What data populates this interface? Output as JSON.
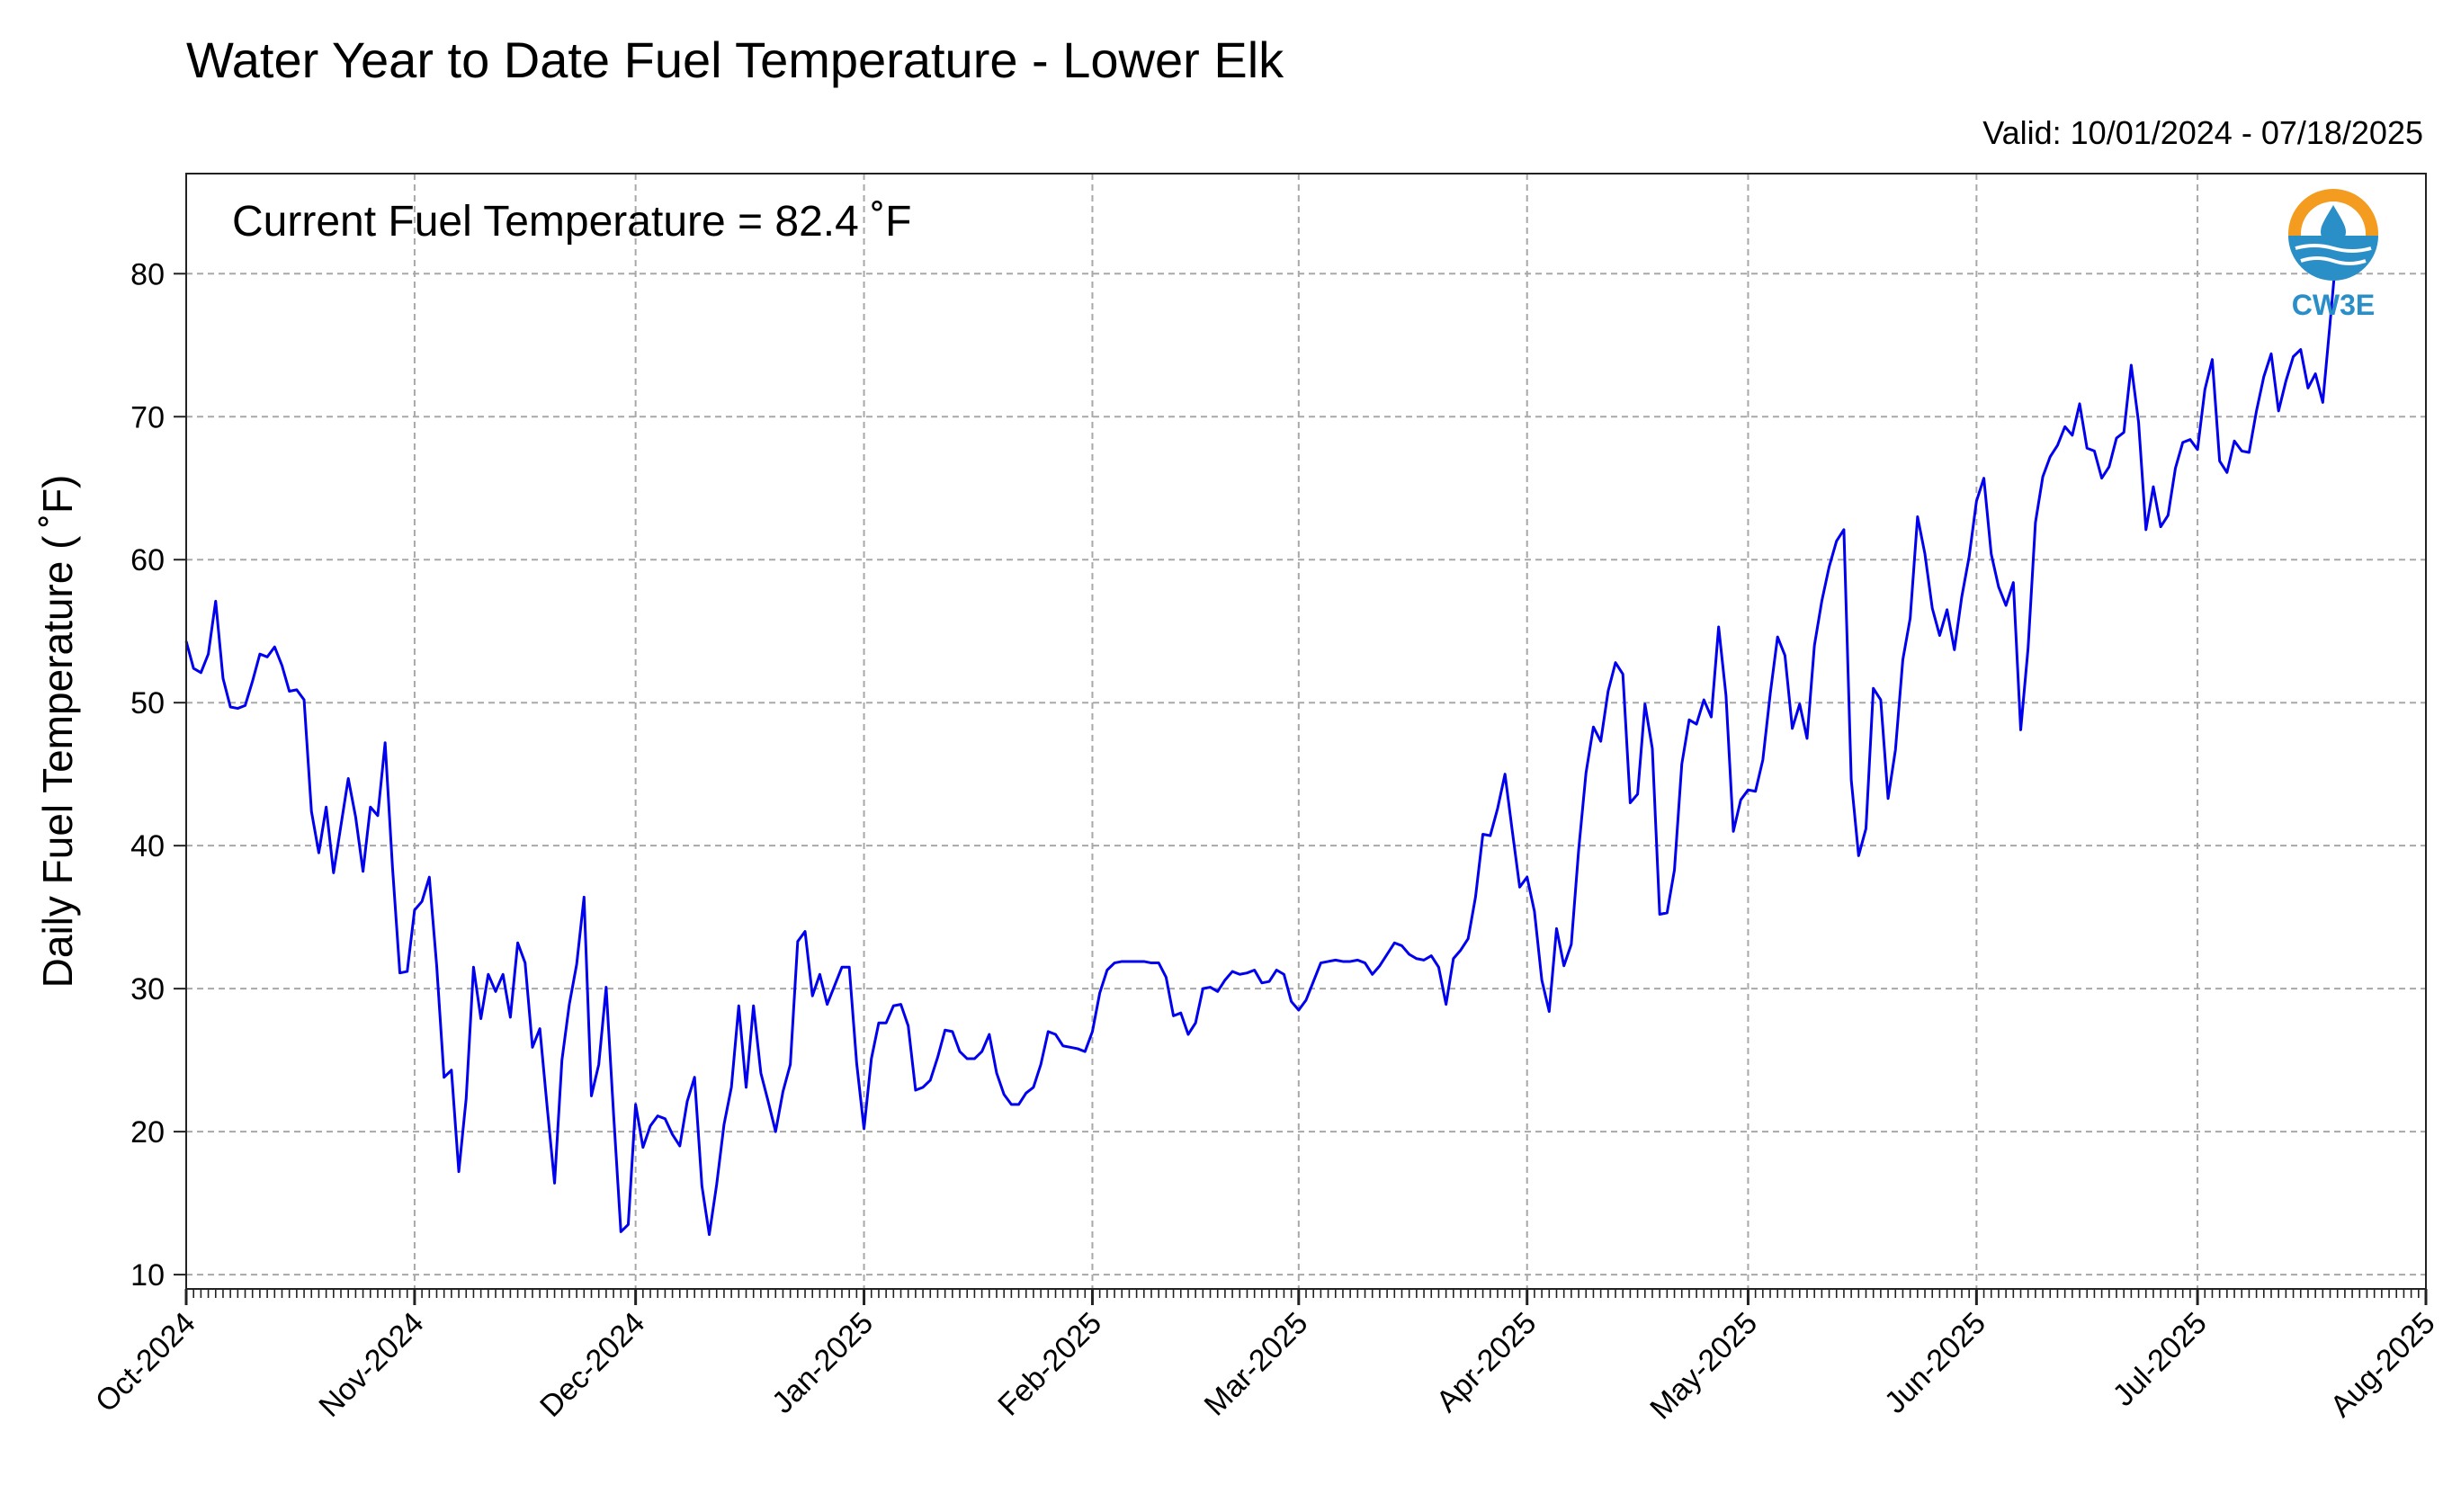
{
  "chart_data": {
    "type": "line",
    "title": "Water Year to Date Fuel Temperature - Lower Elk",
    "subtitle": "Valid: 10/01/2024 - 07/18/2025",
    "ylabel": "Daily Fuel Temperature ($^\\circ$F)",
    "ylabel_display": "Daily Fuel Temperature ( ˚F)",
    "annotation": "Current Fuel Temperature = 82.4 ˚F",
    "logo_text": "CW3E",
    "ylim": [
      9,
      87
    ],
    "yticks": [
      10,
      20,
      30,
      40,
      50,
      60,
      70,
      80
    ],
    "xlim": [
      "2024-10-01",
      "2025-08-01"
    ],
    "xticks": [
      {
        "date": "2024-10-01",
        "label": "Oct-2024"
      },
      {
        "date": "2024-11-01",
        "label": "Nov-2024"
      },
      {
        "date": "2024-12-01",
        "label": "Dec-2024"
      },
      {
        "date": "2025-01-01",
        "label": "Jan-2025"
      },
      {
        "date": "2025-02-01",
        "label": "Feb-2025"
      },
      {
        "date": "2025-03-01",
        "label": "Mar-2025"
      },
      {
        "date": "2025-04-01",
        "label": "Apr-2025"
      },
      {
        "date": "2025-05-01",
        "label": "May-2025"
      },
      {
        "date": "2025-06-01",
        "label": "Jun-2025"
      },
      {
        "date": "2025-07-01",
        "label": "Jul-2025"
      },
      {
        "date": "2025-08-01",
        "label": "Aug-2025"
      }
    ],
    "grid": true,
    "line_color": "#0000ee",
    "series": [
      {
        "start_date": "2024-10-01",
        "values": [
          54.3,
          52.4,
          52.1,
          53.4,
          57.1,
          51.7,
          49.7,
          49.6,
          49.8,
          51.5,
          53.4,
          53.2,
          53.9,
          52.6,
          50.8,
          50.9,
          50.2,
          42.4,
          39.5,
          42.7,
          38.1,
          41.4,
          44.7,
          42.0,
          38.2,
          42.7,
          42.1,
          47.2,
          38.5,
          31.1,
          31.2,
          35.5,
          36.1,
          37.8,
          31.6,
          23.8,
          24.3,
          17.2,
          22.3,
          31.5,
          27.9,
          31.0,
          29.8,
          31.0,
          28.0,
          33.2,
          31.8,
          25.9,
          27.2,
          21.7,
          16.4,
          25.0,
          28.9,
          31.7,
          36.4,
          22.5,
          24.7,
          30.1,
          21.3,
          13.0,
          13.5,
          21.9,
          18.9,
          20.4,
          21.1,
          20.9,
          19.8,
          19.0,
          22.1,
          23.8,
          16.2,
          12.8,
          16.3,
          20.5,
          23.1,
          28.8,
          23.1,
          28.8,
          24.1,
          22.1,
          20.0,
          22.8,
          24.7,
          33.3,
          34.0,
          29.5,
          31.0,
          28.9,
          30.2,
          31.5,
          31.5,
          24.8,
          20.2,
          25.1,
          27.6,
          27.6,
          28.8,
          28.9,
          27.4,
          22.9,
          23.1,
          23.6,
          25.2,
          27.1,
          27.0,
          25.6,
          25.1,
          25.1,
          25.6,
          26.8,
          24.1,
          22.6,
          21.9,
          21.9,
          22.7,
          23.1,
          24.7,
          27.0,
          26.8,
          26.0,
          25.9,
          25.8,
          25.6,
          27.0,
          29.7,
          31.3,
          31.8,
          31.9,
          31.9,
          31.9,
          31.9,
          31.8,
          31.8,
          30.8,
          28.1,
          28.3,
          26.8,
          27.6,
          30.0,
          30.1,
          29.8,
          30.6,
          31.2,
          31.0,
          31.1,
          31.3,
          30.4,
          30.5,
          31.3,
          31.0,
          29.1,
          28.5,
          29.2,
          30.5,
          31.8,
          31.9,
          32.0,
          31.9,
          31.9,
          32.0,
          31.8,
          31.0,
          31.6,
          32.4,
          33.2,
          33.0,
          32.4,
          32.1,
          32.0,
          32.3,
          31.5,
          28.9,
          32.1,
          32.7,
          33.5,
          36.4,
          40.8,
          40.7,
          42.6,
          45.0,
          41.0,
          37.1,
          37.8,
          35.4,
          30.6,
          28.4,
          34.2,
          31.6,
          33.1,
          39.7,
          45.1,
          48.3,
          47.3,
          50.8,
          52.8,
          52.0,
          43.0,
          43.6,
          49.9,
          46.8,
          35.2,
          35.3,
          38.3,
          45.7,
          48.8,
          48.5,
          50.2,
          49.0,
          55.3,
          50.5,
          41.0,
          43.2,
          43.9,
          43.8,
          46.0,
          50.6,
          54.6,
          53.3,
          48.2,
          49.9,
          47.5,
          54.0,
          57.1,
          59.5,
          61.3,
          62.1,
          44.6,
          39.3,
          41.2,
          51.0,
          50.2,
          43.3,
          46.7,
          53.0,
          55.9,
          63.0,
          60.4,
          56.6,
          54.7,
          56.5,
          53.7,
          57.4,
          60.2,
          64.1,
          65.7,
          60.4,
          58.1,
          56.8,
          58.4,
          48.1,
          53.8,
          62.6,
          65.8,
          67.2,
          68.0,
          69.3,
          68.7,
          70.9,
          67.8,
          67.6,
          65.7,
          66.5,
          68.5,
          68.9,
          73.6,
          69.6,
          62.1,
          65.1,
          62.3,
          63.1,
          66.4,
          68.2,
          68.4,
          67.7,
          71.9,
          74.0,
          66.9,
          66.1,
          68.3,
          67.6,
          67.5,
          70.4,
          72.8,
          74.4,
          70.4,
          72.5,
          74.2,
          74.7,
          72.0,
          73.0,
          71.0,
          76.6,
          82.4
        ]
      }
    ]
  }
}
